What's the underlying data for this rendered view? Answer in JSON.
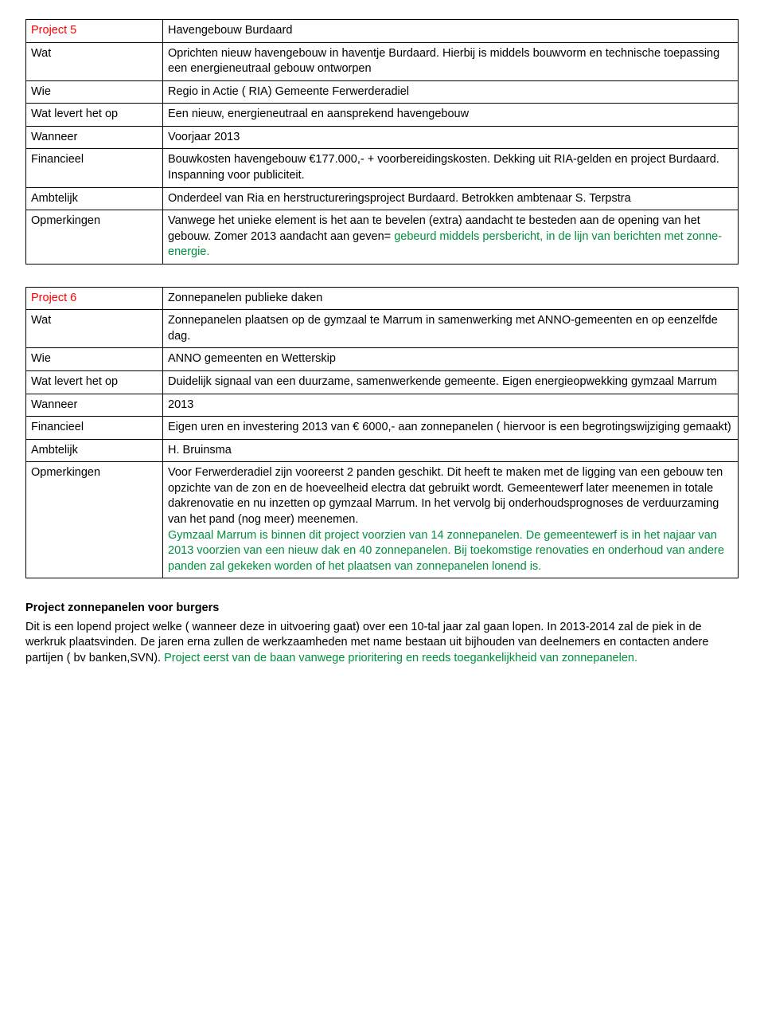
{
  "project5": {
    "header_label": "Project 5",
    "header_value": "Havengebouw Burdaard",
    "rows": {
      "wat_label": "Wat",
      "wat_value": "Oprichten nieuw havengebouw in haventje Burdaard.\nHierbij is middels bouwvorm en technische toepassing een energieneutraal gebouw ontworpen",
      "wie_label": "Wie",
      "wie_value": "Regio in Actie ( RIA) Gemeente Ferwerderadiel",
      "levert_label": "Wat levert het op",
      "levert_value": "Een nieuw, energieneutraal en aansprekend havengebouw",
      "wanneer_label": "Wanneer",
      "wanneer_value": "Voorjaar 2013",
      "financieel_label": "Financieel",
      "financieel_value": "Bouwkosten havengebouw €177.000,- + voorbereidingskosten. Dekking uit RIA-gelden en project Burdaard. Inspanning voor publiciteit.",
      "ambtelijk_label": "Ambtelijk",
      "ambtelijk_value": "Onderdeel van Ria en herstructureringsproject Burdaard. Betrokken ambtenaar S. Terpstra",
      "opm_label": "Opmerkingen",
      "opm_black": "Vanwege het unieke element is het aan te bevelen (extra) aandacht te besteden aan de opening van het gebouw. Zomer 2013 aandacht aan geven= ",
      "opm_green": "gebeurd middels persbericht, in de lijn van berichten met zonne-energie."
    }
  },
  "project6": {
    "header_label": "Project 6",
    "header_value": "Zonnepanelen publieke daken",
    "rows": {
      "wat_label": "Wat",
      "wat_value": "Zonnepanelen plaatsen op de gymzaal te Marrum in samenwerking met ANNO-gemeenten en op eenzelfde dag.",
      "wie_label": "Wie",
      "wie_value": "ANNO gemeenten en Wetterskip",
      "levert_label": "Wat levert het op",
      "levert_value": "Duidelijk signaal van een duurzame, samenwerkende gemeente. Eigen energieopwekking gymzaal Marrum",
      "wanneer_label": "Wanneer",
      "wanneer_value": "2013",
      "financieel_label": "Financieel",
      "financieel_value": "Eigen uren en investering 2013 van € 6000,- aan zonnepanelen ( hiervoor is een begrotingswijziging gemaakt)",
      "ambtelijk_label": "Ambtelijk",
      "ambtelijk_value": "H. Bruinsma",
      "opm_label": "Opmerkingen",
      "opm_black": "Voor Ferwerderadiel zijn vooreerst 2 panden geschikt. Dit heeft te maken met de ligging van een gebouw ten opzichte van de zon en de hoeveelheid electra dat gebruikt wordt. Gemeentewerf later meenemen in totale dakrenovatie en nu inzetten op gymzaal Marrum. In het vervolg bij onderhoudsprognoses de verduurzaming van het pand (nog meer) meenemen.",
      "opm_green": "Gymzaal Marrum is binnen dit project voorzien van 14 zonnepanelen. De gemeentewerf is in het najaar van 2013 voorzien van een nieuw dak en 40 zonnepanelen. Bij toekomstige renovaties en onderhoud van andere panden zal gekeken worden of het plaatsen van zonnepanelen lonend is."
    }
  },
  "footer": {
    "title": "Project zonnepanelen voor burgers",
    "black": "Dit is een lopend project welke ( wanneer deze in uitvoering gaat) over een 10-tal jaar zal gaan lopen. In 2013-2014 zal de piek in de werkruk plaatsvinden. De jaren erna zullen de werkzaamheden met name bestaan uit bijhouden van deelnemers en contacten andere partijen ( bv banken,SVN).",
    "green": "Project eerst van de baan vanwege prioritering en reeds toegankelijkheid van zonnepanelen."
  }
}
